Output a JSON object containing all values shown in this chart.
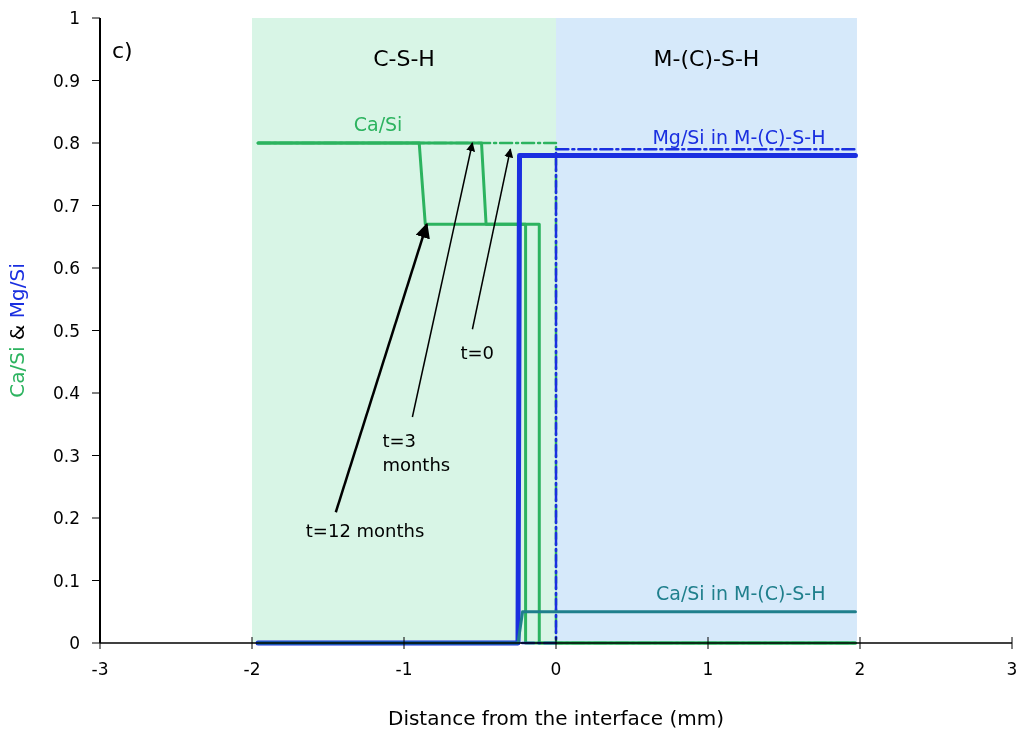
{
  "chart_data": {
    "type": "line",
    "xlabel": "Distance from the interface (mm)",
    "ylabel": "Ca/Si & Mg/Si",
    "xlim": [
      -3,
      3
    ],
    "xticks": [
      -3,
      -2,
      -1,
      0,
      1,
      2,
      3
    ],
    "ylim": [
      0,
      1
    ],
    "yticks": [
      0,
      0.1,
      0.2,
      0.3,
      0.4,
      0.5,
      0.6,
      0.7,
      0.8,
      0.9,
      1
    ],
    "grid": false,
    "bands": [
      {
        "axis": "x",
        "from": -2,
        "to": 0,
        "label": "C-S-H",
        "color": "#d8f5e6"
      },
      {
        "axis": "x",
        "from": 0,
        "to": 1.98,
        "label": "M-(C)-S-H",
        "color": "#d6e9fa"
      }
    ],
    "series": [
      {
        "name": "Ca/Si",
        "color": "#2cb35f",
        "line_style": "solid",
        "x": [
          -1.96,
          -0.9,
          -0.86,
          -0.2,
          -0.2,
          1.97
        ],
        "values": [
          0.8,
          0.8,
          0.67,
          0.67,
          0,
          0
        ]
      },
      {
        "color": "#2cb35f",
        "line_style": "solid",
        "x": [
          -1.96,
          -0.49,
          -0.46,
          -0.11,
          -0.11,
          1.97
        ],
        "values": [
          0.8,
          0.8,
          0.67,
          0.67,
          0,
          0
        ]
      },
      {
        "color": "#2cb35f",
        "line_style": "dashed",
        "x": [
          -1.96,
          0,
          0,
          1.97
        ],
        "values": [
          0.8,
          0.8,
          0,
          0
        ]
      },
      {
        "color": "#1a2fe0",
        "line_style": "dashed",
        "x": [
          -1.96,
          0,
          0,
          1.97
        ],
        "values": [
          0,
          0,
          0.79,
          0.79
        ]
      },
      {
        "name": "Mg/Si in M-(C)-S-H",
        "color": "#1a2fe0",
        "line_style": "solid",
        "x": [
          -1.96,
          -0.25,
          -0.24,
          1.97
        ],
        "values": [
          0,
          0,
          0.78,
          0.78
        ]
      },
      {
        "name": "Ca/Si in M-(C)-S-H",
        "color": "#1f7f8c",
        "line_style": "solid",
        "x": [
          -1.96,
          -0.25,
          -0.22,
          1.97
        ],
        "values": [
          0,
          0,
          0.05,
          0.05
        ]
      }
    ],
    "annotations": [
      "c)",
      {
        "text": "t=0",
        "x": -0.3,
        "y": 0.79
      },
      {
        "text": "t=3 months",
        "x": -0.55,
        "y": 0.8
      },
      {
        "text": "t=12 months",
        "x": -0.85,
        "y": 0.67
      }
    ]
  }
}
